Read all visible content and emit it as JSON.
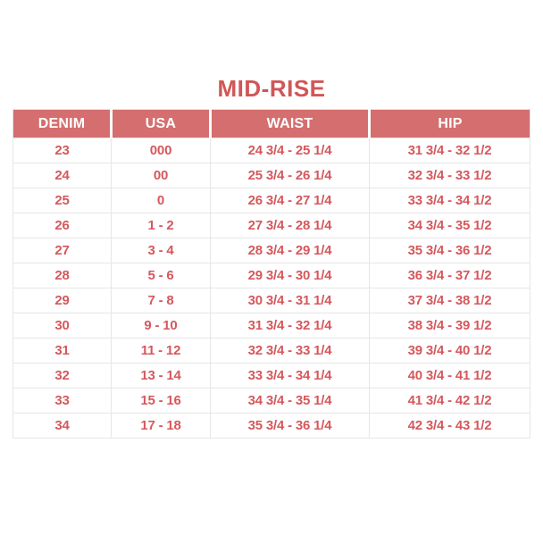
{
  "title": "MID-RISE",
  "colors": {
    "title_text": "#d15656",
    "header_background": "#d56e6e",
    "header_text": "#ffffff",
    "cell_text": "#d5585c",
    "grid_line": "#e6e6e6",
    "page_background": "#ffffff"
  },
  "chart_data": {
    "type": "table",
    "title": "MID-RISE",
    "columns": [
      "DENIM",
      "USA",
      "WAIST",
      "HIP"
    ],
    "rows": [
      [
        "23",
        "000",
        "24 3/4 - 25 1/4",
        "31 3/4 - 32 1/2"
      ],
      [
        "24",
        "00",
        "25 3/4 - 26 1/4",
        "32 3/4 - 33 1/2"
      ],
      [
        "25",
        "0",
        "26 3/4 - 27 1/4",
        "33 3/4 - 34 1/2"
      ],
      [
        "26",
        "1 - 2",
        "27 3/4 - 28 1/4",
        "34 3/4 - 35 1/2"
      ],
      [
        "27",
        "3 - 4",
        "28 3/4 - 29 1/4",
        "35 3/4 - 36 1/2"
      ],
      [
        "28",
        "5 - 6",
        "29 3/4 - 30 1/4",
        "36 3/4 - 37 1/2"
      ],
      [
        "29",
        "7 - 8",
        "30 3/4 - 31 1/4",
        "37 3/4 - 38 1/2"
      ],
      [
        "30",
        "9 - 10",
        "31 3/4 - 32 1/4",
        "38 3/4 - 39 1/2"
      ],
      [
        "31",
        "11 - 12",
        "32 3/4 - 33 1/4",
        "39 3/4 - 40 1/2"
      ],
      [
        "32",
        "13 - 14",
        "33 3/4 - 34 1/4",
        "40 3/4 - 41 1/2"
      ],
      [
        "33",
        "15 - 16",
        "34 3/4 - 35 1/4",
        "41 3/4 - 42 1/2"
      ],
      [
        "34",
        "17 - 18",
        "35 3/4 - 36 1/4",
        "42 3/4 - 43 1/2"
      ]
    ]
  }
}
